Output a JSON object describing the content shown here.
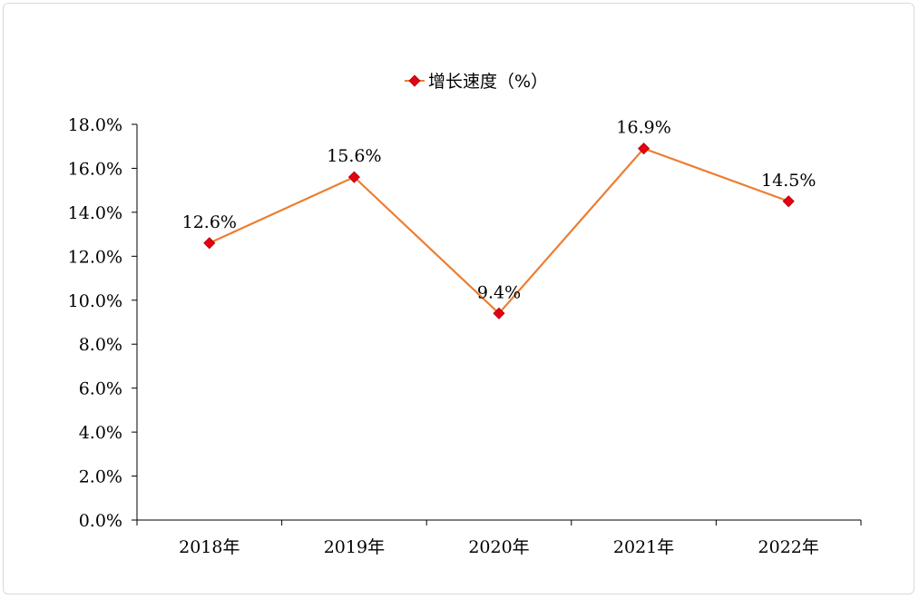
{
  "chart_data": {
    "type": "line",
    "categories": [
      "2018年",
      "2019年",
      "2020年",
      "2021年",
      "2022年"
    ],
    "series": [
      {
        "name": "增长速度（%）",
        "values": [
          12.6,
          15.6,
          9.4,
          16.9,
          14.5
        ],
        "data_labels": [
          "12.6%",
          "15.6%",
          "9.4%",
          "16.9%",
          "14.5%"
        ],
        "line_color": "#ED7D31",
        "marker_color": "#E3000F",
        "marker": "diamond"
      }
    ],
    "y_ticks": [
      "0.0%",
      "2.0%",
      "4.0%",
      "6.0%",
      "8.0%",
      "10.0%",
      "12.0%",
      "14.0%",
      "16.0%",
      "18.0%"
    ],
    "ylim": [
      0,
      18
    ],
    "y_step": 2,
    "grid": false,
    "legend_position": "top-center",
    "title": "",
    "xlabel": "",
    "ylabel": ""
  }
}
